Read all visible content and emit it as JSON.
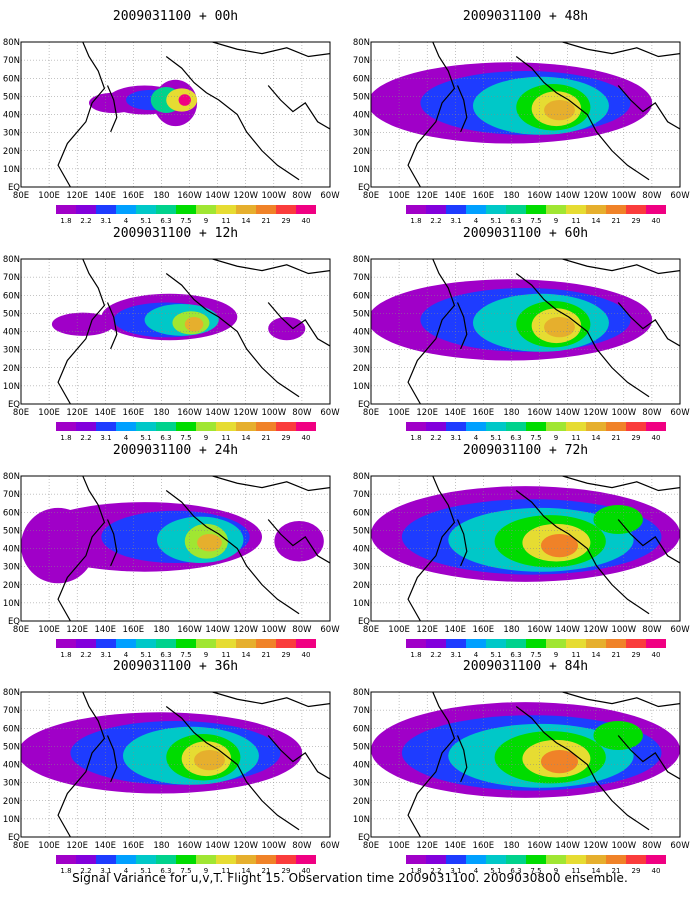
{
  "caption": "Signal Variance for u,v,T. Flight 15. Observation time 2009031100. 2009030800 ensemble.",
  "lat_ticks": [
    "80N",
    "70N",
    "60N",
    "50N",
    "40N",
    "30N",
    "20N",
    "10N",
    "EQ"
  ],
  "lon_ticks": [
    "80E",
    "100E",
    "120E",
    "140E",
    "160E",
    "180",
    "160W",
    "140W",
    "120W",
    "100W",
    "80W",
    "60W"
  ],
  "colorbar": {
    "levels": [
      "1.8",
      "2.2",
      "3.1",
      "4",
      "5.1",
      "6.3",
      "7.5",
      "9",
      "11",
      "14",
      "21",
      "29",
      "40"
    ],
    "colors": [
      "#a000c8",
      "#8200dc",
      "#1e3cff",
      "#00a0ff",
      "#00c8c8",
      "#00d28c",
      "#00dc00",
      "#a0e632",
      "#e6dc32",
      "#e6af2d",
      "#f08228",
      "#fa3c3c",
      "#f00082"
    ]
  },
  "chart_data": [
    {
      "type": "heatmap",
      "title": "2009031100 + 00h",
      "panel_index": 0,
      "footprint": "small"
    },
    {
      "type": "heatmap",
      "title": "2009031100 + 12h",
      "panel_index": 1,
      "footprint": "medium"
    },
    {
      "type": "heatmap",
      "title": "2009031100 + 24h",
      "panel_index": 2,
      "footprint": "medium-large"
    },
    {
      "type": "heatmap",
      "title": "2009031100 + 36h",
      "panel_index": 3,
      "footprint": "large"
    },
    {
      "type": "heatmap",
      "title": "2009031100 + 48h",
      "panel_index": 4,
      "footprint": "large"
    },
    {
      "type": "heatmap",
      "title": "2009031100 + 60h",
      "panel_index": 5,
      "footprint": "large"
    },
    {
      "type": "heatmap",
      "title": "2009031100 + 72h",
      "panel_index": 6,
      "footprint": "very-large"
    },
    {
      "type": "heatmap",
      "title": "2009031100 + 84h",
      "panel_index": 7,
      "footprint": "very-large"
    }
  ]
}
